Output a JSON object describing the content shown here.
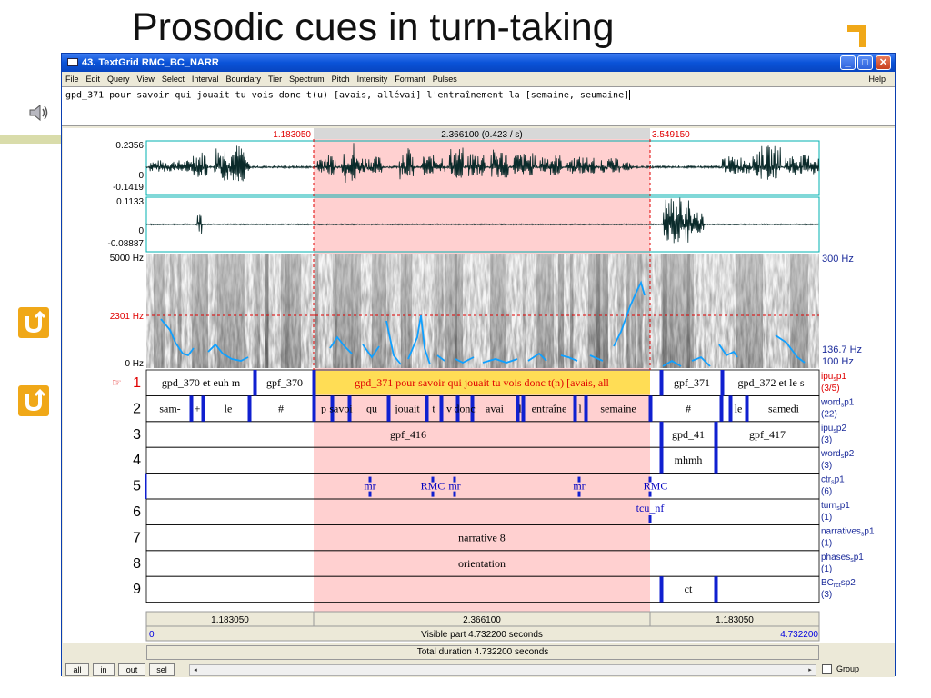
{
  "slide": {
    "title": "Prosodic cues in turn-taking"
  },
  "window": {
    "title": "43. TextGrid RMC_BC_NARR",
    "menu": [
      "File",
      "Edit",
      "Query",
      "View",
      "Select",
      "Interval",
      "Boundary",
      "Tier",
      "Spectrum",
      "Pitch",
      "Intensity",
      "Formant",
      "Pulses"
    ],
    "help": "Help",
    "min_glyph": "_",
    "max_glyph": "□",
    "close_glyph": "✕"
  },
  "text_area": {
    "value": "gpd_371 pour savoir qui jouait tu vois donc t(u) [avais, allévai] l'entraînement la [semaine, seumaine]"
  },
  "selection": {
    "left_time": "1.183050",
    "center_label": "2.366100 (0.423 / s)",
    "right_time": "3.549150"
  },
  "waveforms": [
    {
      "max": "0.2356",
      "zero": "0",
      "min": "-0.1419"
    },
    {
      "max": "0.1133",
      "zero": "0",
      "min": "-0.08887"
    }
  ],
  "spectrogram": {
    "top_freq": "5000 Hz",
    "cursor_freq": "2301 Hz",
    "bottom_freq": "0 Hz",
    "pitch_top": "300 Hz",
    "pitch_value": "136.7 Hz",
    "pitch_bottom": "100 Hz"
  },
  "tiers": [
    {
      "num": "1",
      "name": "ipu",
      "sub": "s",
      "suffix": "p1",
      "count": "(3/5)",
      "highlight": true
    },
    {
      "num": "2",
      "name": "word",
      "sub": "s",
      "suffix": "p1",
      "count": "(22)"
    },
    {
      "num": "3",
      "name": "ipu",
      "sub": "s",
      "suffix": "p2",
      "count": "(3)"
    },
    {
      "num": "4",
      "name": "word",
      "sub": "s",
      "suffix": "p2",
      "count": "(3)"
    },
    {
      "num": "5",
      "name": "ctr",
      "sub": "s",
      "suffix": "p1",
      "count": "(6)"
    },
    {
      "num": "6",
      "name": "turn",
      "sub": "s",
      "suffix": "p1",
      "count": "(1)"
    },
    {
      "num": "7",
      "name": "narratives",
      "sub": "s",
      "suffix": "p1",
      "count": "(1)"
    },
    {
      "num": "8",
      "name": "phases",
      "sub": "s",
      "suffix": "p1",
      "count": "(1)"
    },
    {
      "num": "9",
      "name": "BC",
      "sub": "rct",
      "suffix": "sp2",
      "count": "(3)"
    }
  ],
  "tier_labels": {
    "t1": [
      "gpd_370 et euh m",
      "gpf_370",
      "gpd_371 pour savoir qui jouait tu vois donc t(n) [avais, all",
      "gpf_371",
      "gpd_372 et le s"
    ],
    "t2": [
      "sam-",
      "+",
      "le",
      "#",
      "p",
      "savoi",
      "qu",
      "jouait",
      "t",
      "v",
      "donc",
      "avai",
      "l",
      "entraîne",
      "l",
      "semaine",
      "#",
      "le",
      "samedi"
    ],
    "t3": [
      "gpf_416",
      "gpd_41",
      "gpf_417"
    ],
    "t4": [
      "mhmh"
    ],
    "t5": [
      "mr",
      "RMC",
      "mr",
      "mr",
      "RMC"
    ],
    "t6": [
      "tcu_nf"
    ],
    "t7": [
      "narrative 8"
    ],
    "t8": [
      "orientation"
    ],
    "t9": [
      "ct"
    ]
  },
  "durations": {
    "left": "1.183050",
    "center": "2.366100",
    "right": "1.183050",
    "visible_start": "0",
    "visible_part": "Visible part 4.732200 seconds",
    "visible_end": "4.732200",
    "total": "Total duration 4.732200 seconds"
  },
  "bottom": {
    "all": "all",
    "in": "in",
    "out": "out",
    "sel": "sel",
    "left_arrow": "◂",
    "right_arrow": "▸",
    "group": "Group"
  },
  "colors": {
    "selection": "#ffd0d0",
    "tier1_highlight": "#ffdd55",
    "boundary": "#1020d0",
    "pitch": "#10a0ff",
    "red_text": "#e00000",
    "blue_text": "#0000e0"
  }
}
